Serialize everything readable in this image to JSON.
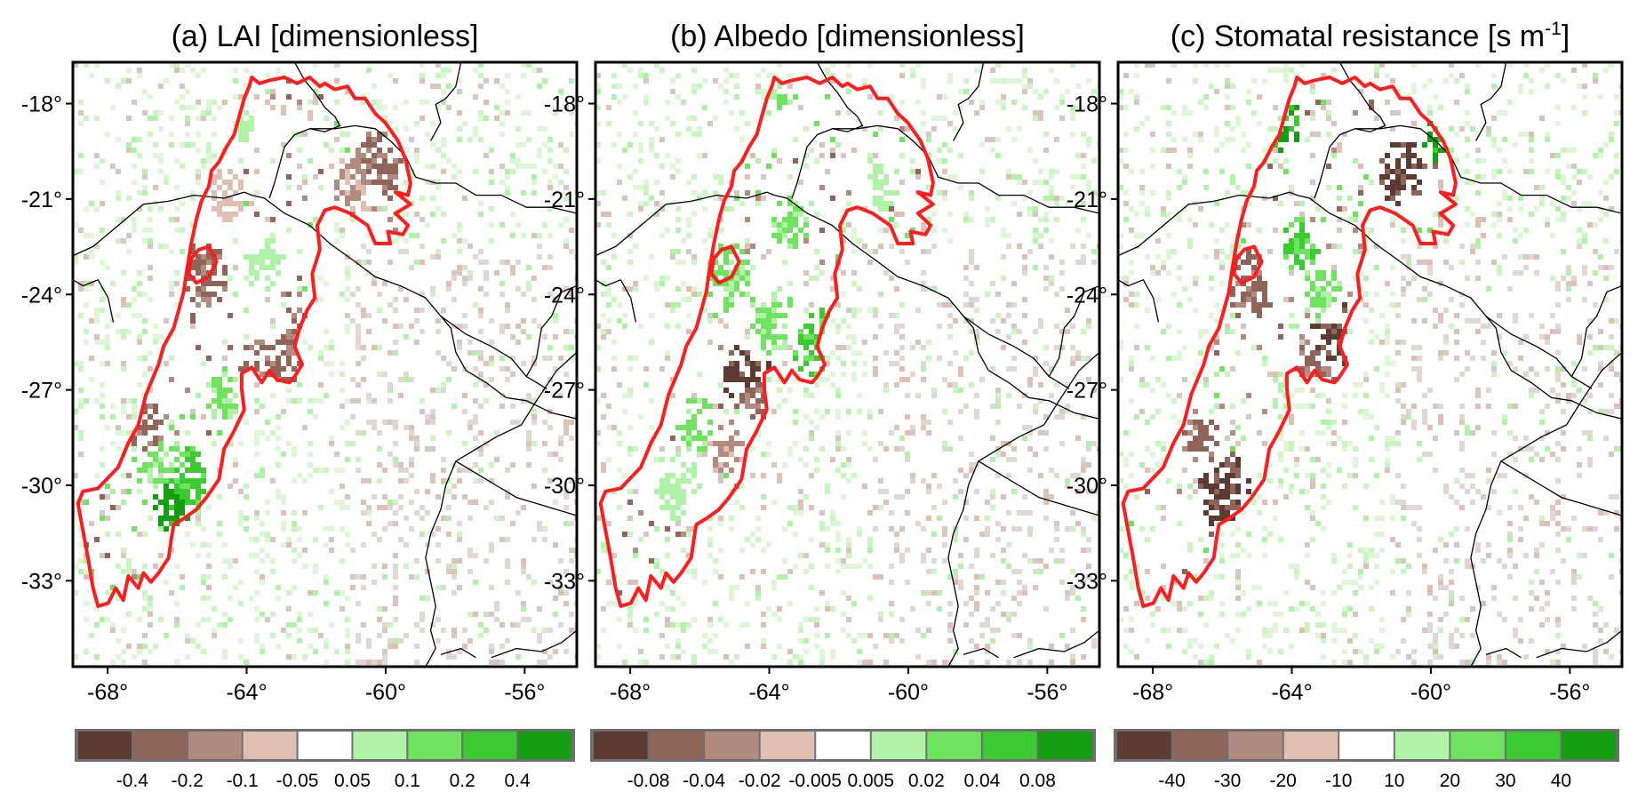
{
  "panels": [
    {
      "id": "a",
      "title": "(a) LAI [dimensionless]",
      "title_sup": "",
      "title_tail": "",
      "legend_labels": [
        "-0.4",
        "-0.2",
        "-0.1",
        "-0.05",
        "0.05",
        "0.1",
        "0.2",
        "0.4"
      ]
    },
    {
      "id": "b",
      "title": "(b) Albedo [dimensionless]",
      "title_sup": "",
      "title_tail": "",
      "legend_labels": [
        "-0.08",
        "-0.04",
        "-0.02",
        "-0.005",
        "0.005",
        "0.02",
        "0.04",
        "0.08"
      ]
    },
    {
      "id": "c",
      "title": "(c) Stomatal resistance [s m",
      "title_sup": "-1",
      "title_tail": "]",
      "legend_labels": [
        "-40",
        "-30",
        "-20",
        "-10",
        "10",
        "20",
        "30",
        "40"
      ]
    }
  ],
  "lat_ticks": [
    {
      "value": -18,
      "label": "-18°"
    },
    {
      "value": -21,
      "label": "-21°"
    },
    {
      "value": -24,
      "label": "-24°"
    },
    {
      "value": -27,
      "label": "-27°"
    },
    {
      "value": -30,
      "label": "-30°"
    },
    {
      "value": -33,
      "label": "-33°"
    }
  ],
  "lon_ticks": [
    {
      "value": -68,
      "label": "-68°"
    },
    {
      "value": -64,
      "label": "-64°"
    },
    {
      "value": -60,
      "label": "-60°"
    },
    {
      "value": -56,
      "label": "-56°"
    }
  ],
  "map_extent": {
    "lon_min": -69,
    "lon_max": -54.5,
    "lat_min": -35.7,
    "lat_max": -16.7
  },
  "legend_colors": [
    "#5c3b33",
    "#8e6558",
    "#b28b80",
    "#e0bfb3",
    "#ffffff",
    "#b0f2a8",
    "#6fe25f",
    "#3bca32",
    "#149e11"
  ],
  "colors": {
    "region_outline": "#ff1c1c",
    "borders": "#000000",
    "frame": "#000000"
  }
}
